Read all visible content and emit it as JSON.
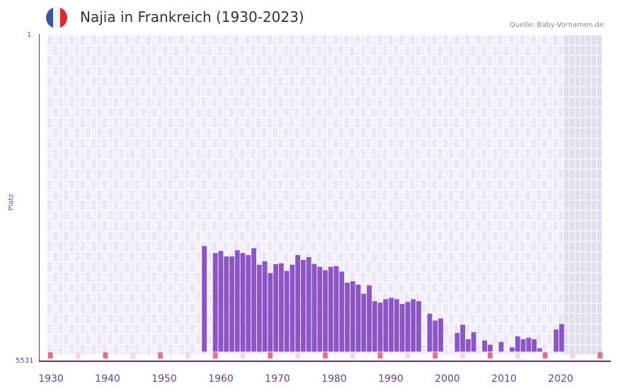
{
  "header": {
    "title": "Najia in Frankreich (1930-2023)",
    "source": "Quelle: Baby-Vornamen.de",
    "flag_colors": [
      "#3a56a8",
      "#f2f2f2",
      "#e8232a"
    ]
  },
  "colors": {
    "bar": "#8b55c6",
    "axis": "#6b2e8e",
    "grid_bg_a": "#f3effb",
    "grid_bg_b": "#ece7f7",
    "future_bg": "#e2dded",
    "decade_marker": "#e5717c",
    "half_decade_marker": "#f5d6df"
  },
  "chart_data": {
    "type": "bar",
    "title": "Najia in Frankreich (1930-2023)",
    "xlabel": "",
    "ylabel": "Platz",
    "y_axis_inverted": true,
    "ylim": [
      5531,
      1
    ],
    "ytick_labels": [
      "1",
      "5531"
    ],
    "xtick_labels": [
      "1930",
      "1940",
      "1950",
      "1960",
      "1970",
      "1980",
      "1990",
      "2000",
      "2010",
      "2020"
    ],
    "categories": [
      1956,
      1958,
      1959,
      1960,
      1961,
      1962,
      1963,
      1964,
      1965,
      1966,
      1967,
      1968,
      1969,
      1970,
      1971,
      1972,
      1973,
      1974,
      1975,
      1976,
      1977,
      1978,
      1979,
      1980,
      1981,
      1982,
      1983,
      1984,
      1985,
      1986,
      1987,
      1988,
      1989,
      1990,
      1991,
      1992,
      1993,
      1994,
      1995,
      1997,
      1998,
      1999,
      2002,
      2003,
      2004,
      2005,
      2007,
      2008,
      2010,
      2012,
      2013,
      2014,
      2015,
      2016,
      2017,
      2020,
      2021
    ],
    "values": [
      3694,
      3814,
      3778,
      3874,
      3874,
      3766,
      3814,
      3850,
      3730,
      4018,
      3958,
      4162,
      4006,
      3994,
      4126,
      4018,
      3850,
      3934,
      3886,
      4006,
      4054,
      4114,
      4054,
      4042,
      4138,
      4330,
      4306,
      4366,
      4522,
      4378,
      4654,
      4678,
      4618,
      4594,
      4618,
      4702,
      4666,
      4618,
      4654,
      4870,
      4990,
      4954,
      5206,
      5062,
      5314,
      5194,
      5338,
      5410,
      5362,
      5458,
      5266,
      5314,
      5290,
      5314,
      5470,
      5146,
      5050
    ],
    "grid": true
  },
  "axis": {
    "y_top": "1",
    "y_bottom": "5531",
    "y_title": "Platz"
  }
}
